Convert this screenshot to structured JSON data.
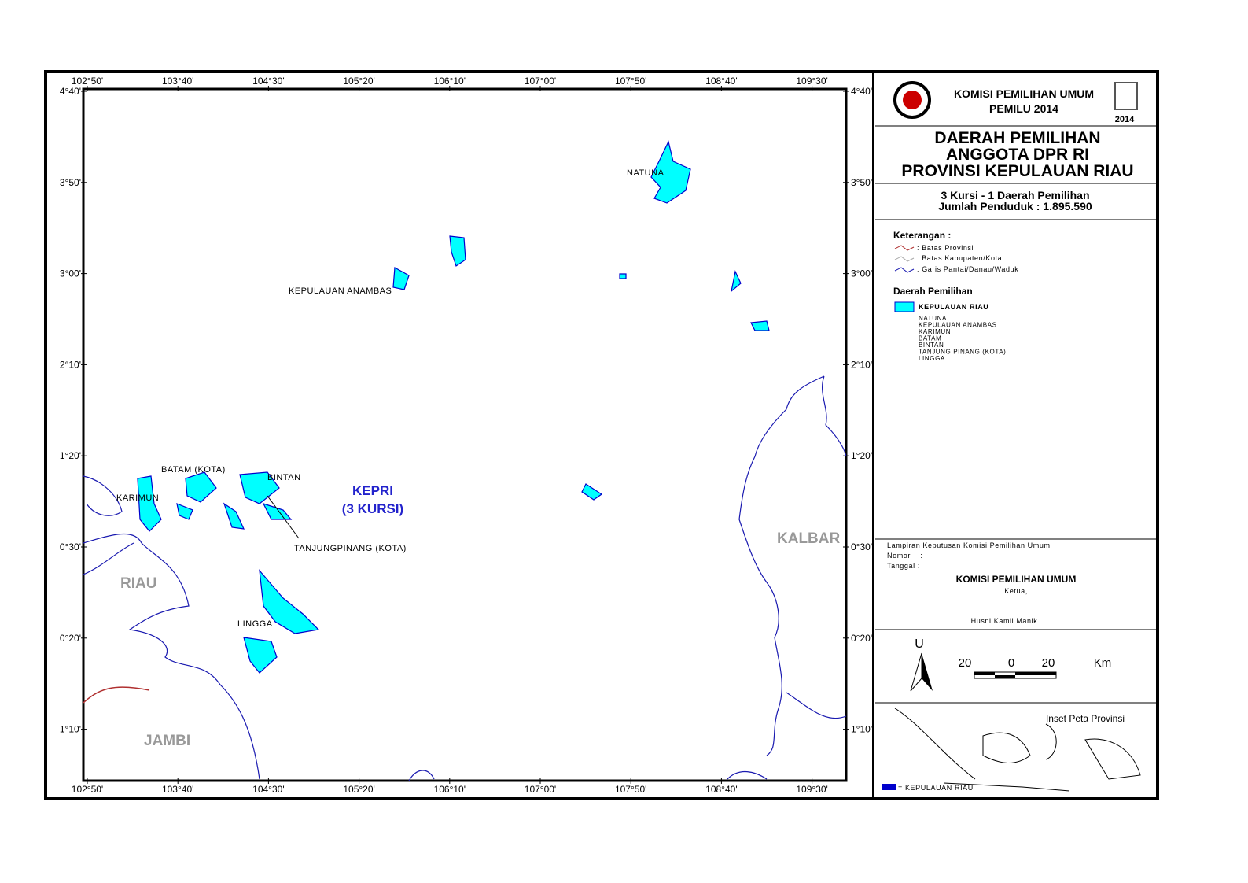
{
  "map": {
    "lon_labels": [
      "102°50'",
      "103°40'",
      "104°30'",
      "105°20'",
      "106°10'",
      "107°00'",
      "107°50'",
      "108°40'",
      "109°30'"
    ],
    "lat_labels": [
      "4°40'",
      "3°50'",
      "3°00'",
      "2°10'",
      "1°20'",
      "0°30'",
      "0°20'",
      "1°10'"
    ],
    "places": {
      "natuna": "NATUNA",
      "anambas": "KEPULAUAN ANAMBAS",
      "batam": "BATAM (KOTA)",
      "bintan": "BINTAN",
      "karimun": "KARIMUN",
      "tanjungpinang": "TANJUNGPINANG (KOTA)",
      "lingga": "LINGGA",
      "riau": "RIAU",
      "jambi": "JAMBI",
      "kalbar": "KALBAR",
      "kepri": "KEPRI",
      "kursi": "(3 KURSI)"
    }
  },
  "header": {
    "org": "KOMISI PEMILIHAN UMUM",
    "event": "PEMILU 2014",
    "logo_year": "2014"
  },
  "title": [
    "DAERAH PEMILIHAN",
    "ANGGOTA DPR RI",
    "PROVINSI KEPULAUAN RIAU"
  ],
  "info": [
    "3 Kursi - 1 Daerah Pemilihan",
    "Jumlah Penduduk : 1.895.590"
  ],
  "legend": {
    "heading": "Keterangan :",
    "lines": [
      ": Batas Provinsi",
      ": Batas Kabupaten/Kota",
      ": Garis Pantai/Danau/Waduk"
    ],
    "dapil_heading": "Daerah Pemilihan",
    "dapil": "KEPULAUAN RIAU",
    "members": [
      "NATUNA",
      "KEPULAUAN ANAMBAS",
      "KARIMUN",
      "BATAM",
      "BINTAN",
      "TANJUNG PINANG (KOTA)",
      "LINGGA"
    ]
  },
  "signature": {
    "lampiran": "Lampiran Keputusan Komisi Pemilihan Umum",
    "nomor": "Nomor    :",
    "tanggal": "Tanggal :",
    "org": "KOMISI PEMILIHAN UMUM",
    "role": "Ketua,",
    "name": "Husni Kamil Manik"
  },
  "scale": {
    "north": "U",
    "left": "20",
    "zero": "0",
    "right": "20",
    "unit": "Km"
  },
  "inset": {
    "title": "Inset Peta Provinsi",
    "legend": "= KEPULAUAN RIAU"
  }
}
